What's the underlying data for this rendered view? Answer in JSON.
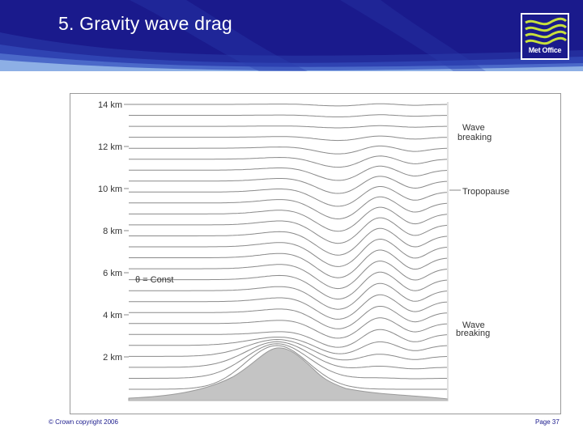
{
  "slide": {
    "title": "5.  Gravity wave drag",
    "logo_text": "Met Office",
    "copyright": "© Crown copyright 2006",
    "page": "Page 37"
  },
  "diagram": {
    "y_axis_labels": [
      "14 km",
      "12 km",
      "10 km",
      "8 km",
      "6 km",
      "4 km",
      "2 km"
    ],
    "annotations": {
      "wave_breaking_upper": [
        "Wave",
        "breaking"
      ],
      "tropopause": "Tropopause",
      "wave_breaking_lower": [
        "Wave",
        "breaking"
      ],
      "theta_const": "θ = Const"
    },
    "colors": {
      "isentrope": "#8a8a8a",
      "mountain": "#c4c4c4",
      "header_blue": "#1a1a8c",
      "text_blue": "#1a1a8c"
    }
  }
}
